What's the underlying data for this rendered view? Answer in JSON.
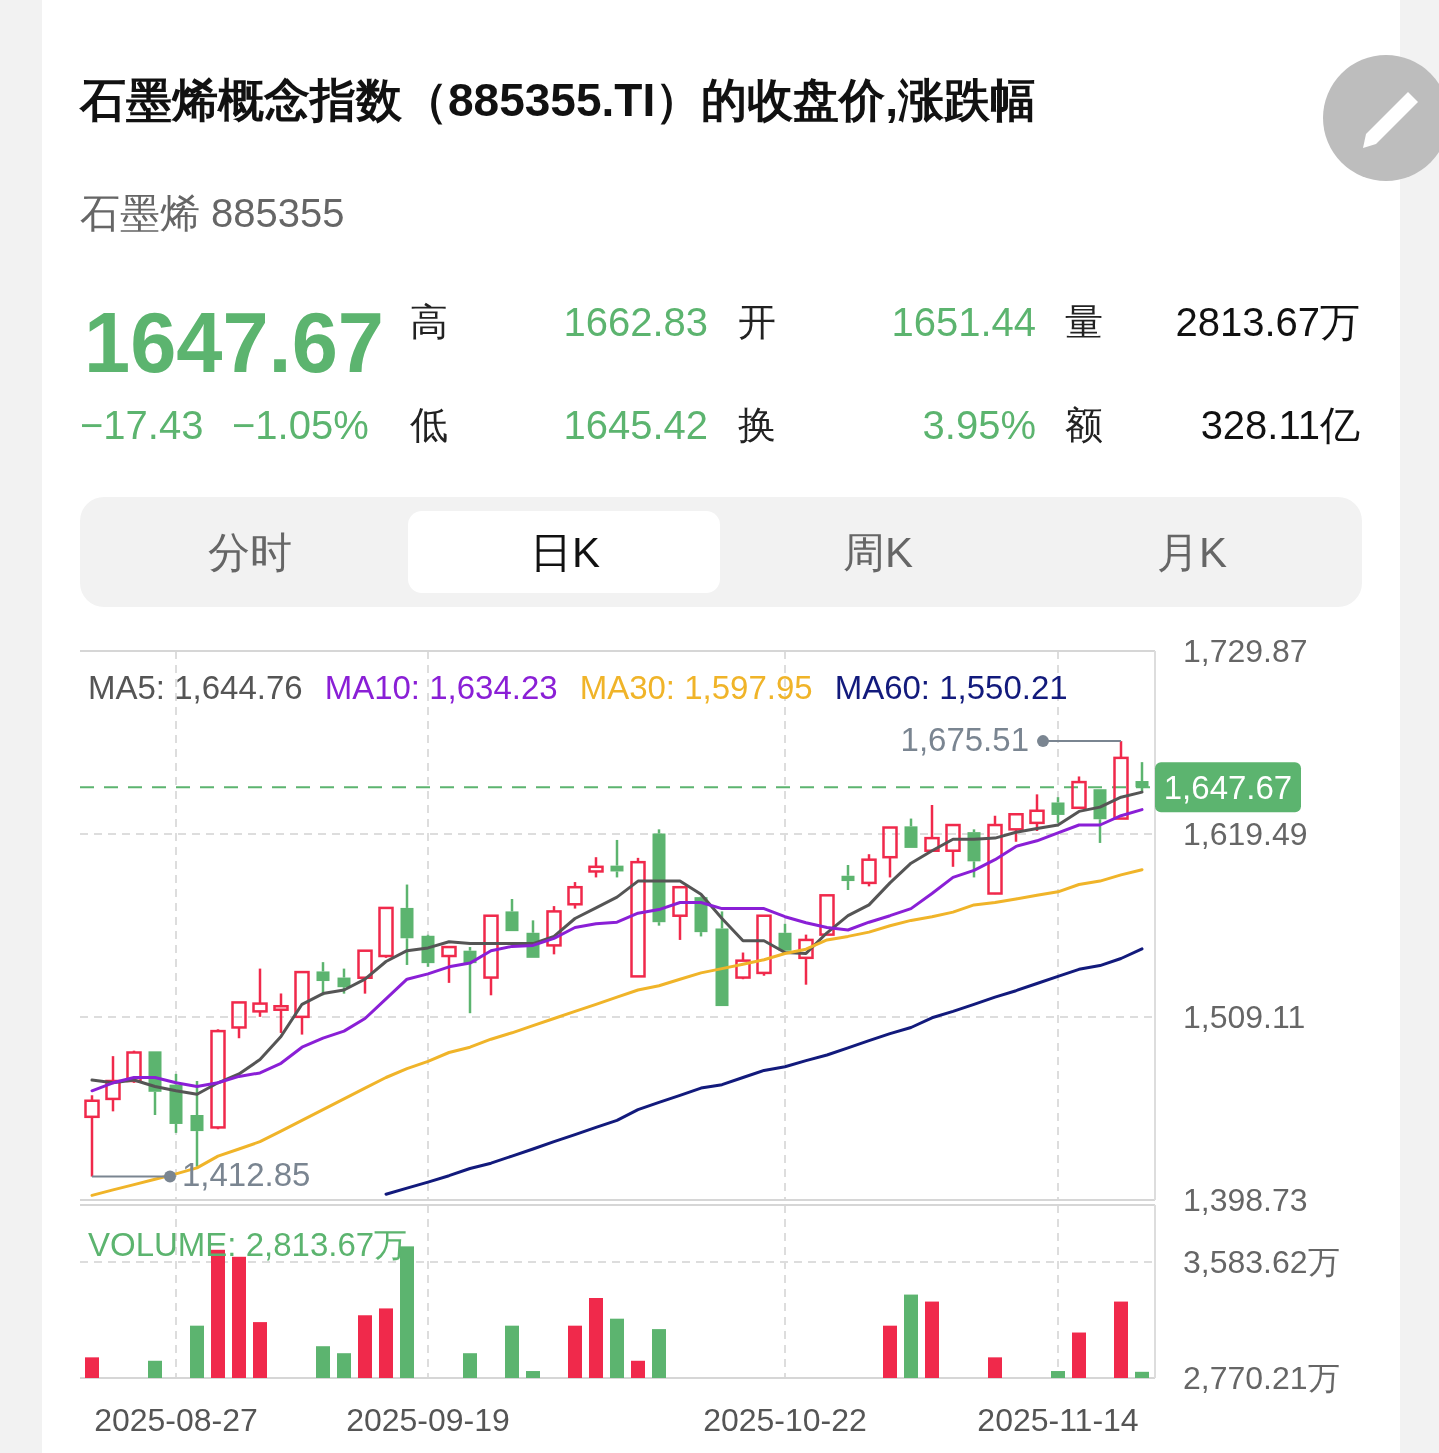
{
  "chart_data": [
    {
      "type": "other",
      "title": "石墨烯概念指数（885355.TI）的收盘价,涨跌幅",
      "subtitle": "石墨烯 885355",
      "annotations": [
        "1647.67",
        "−17.43",
        "−1.05%",
        "高",
        "1662.83",
        "开",
        "1651.44",
        "量",
        "2813.67万",
        "低",
        "1645.42",
        "换",
        "3.95%",
        "额",
        "328.11亿",
        "分时",
        "日K",
        "周K",
        "月K"
      ]
    },
    {
      "type": "candlestick",
      "tick_labels": "y",
      "grid": true,
      "legend": "top",
      "categories": [
        null,
        null,
        null,
        null,
        "2025-08-27",
        null,
        null,
        null,
        null,
        null,
        null,
        null,
        null,
        null,
        null,
        null,
        "2025-09-19",
        null,
        null,
        null,
        null,
        null,
        null,
        null,
        null,
        null,
        null,
        null,
        null,
        null,
        null,
        null,
        null,
        "2025-10-22",
        null,
        null,
        null,
        null,
        null,
        null,
        null,
        null,
        null,
        null,
        null,
        null,
        "2025-11-14",
        null,
        null,
        null,
        null
      ],
      "ylim": [
        1398.73,
        1729.87
      ],
      "yticks": [
        {
          "value": 1729.87,
          "label": "1,729.87"
        },
        {
          "value": 1619.49,
          "label": "1,619.49"
        },
        {
          "value": 1509.11,
          "label": "1,509.11"
        },
        {
          "value": 1398.73,
          "label": "1,398.73"
        }
      ],
      "ohlc": [
        [
          1448.9,
          1461.9,
          1412.85,
          1458.6
        ],
        [
          1459.7,
          1485.5,
          1452.2,
          1470.5
        ],
        [
          1470.5,
          1488.8,
          1469.4,
          1487.7
        ],
        [
          1488.4,
          1488.4,
          1450.0,
          1464.0
        ],
        [
          1468.3,
          1474.8,
          1439.2,
          1444.6
        ],
        [
          1450.0,
          1470.5,
          1418.8,
          1440.3
        ],
        [
          1442.5,
          1501.7,
          1441.4,
          1500.6
        ],
        [
          1502.8,
          1517.9,
          1496.3,
          1517.9
        ],
        [
          1512.5,
          1538.3,
          1509.2,
          1517.2
        ],
        [
          1513.5,
          1523.3,
          1499.5,
          1515.6
        ],
        [
          1509.2,
          1536.2,
          1498.5,
          1536.2
        ],
        [
          1536.6,
          1542.2,
          1522.2,
          1530.8
        ],
        [
          1532.9,
          1538.3,
          1523.2,
          1527.1
        ],
        [
          1532.8,
          1549.1,
          1523.2,
          1549.1
        ],
        [
          1545.9,
          1574.9,
          1544.8,
          1574.9
        ],
        [
          1574.9,
          1589.0,
          1540.5,
          1556.6
        ],
        [
          1558.1,
          1558.7,
          1539.4,
          1541.6
        ],
        [
          1545.9,
          1551.3,
          1529.7,
          1551.3
        ],
        [
          1549.1,
          1551.3,
          1511.4,
          1541.6
        ],
        [
          1532.9,
          1570.2,
          1522.2,
          1570.2
        ],
        [
          1572.8,
          1580.3,
          1560.9,
          1560.9
        ],
        [
          1559.9,
          1567.4,
          1544.8,
          1544.8
        ],
        [
          1552.3,
          1576.0,
          1546.9,
          1572.8
        ],
        [
          1577.1,
          1590.5,
          1574.5,
          1587.4
        ],
        [
          1596.9,
          1605.5,
          1593.3,
          1599.7
        ],
        [
          1600.4,
          1615.9,
          1593.3,
          1596.9
        ],
        [
          1533.6,
          1605.1,
          1533.6,
          1602.5
        ],
        [
          1619.8,
          1622.3,
          1564.2,
          1566.3
        ],
        [
          1570.2,
          1587.4,
          1555.6,
          1587.4
        ],
        [
          1581.4,
          1581.8,
          1557.7,
          1560.3
        ],
        [
          1562.5,
          1572.8,
          1515.7,
          1515.7
        ],
        [
          1532.9,
          1548.0,
          1531.9,
          1543.1
        ],
        [
          1535.7,
          1570.2,
          1534.0,
          1570.2
        ],
        [
          1559.9,
          1565.3,
          1549.1,
          1549.1
        ],
        [
          1544.8,
          1558.8,
          1528.6,
          1555.6
        ],
        [
          1558.8,
          1582.5,
          1558.8,
          1582.5
        ],
        [
          1594.3,
          1600.8,
          1585.7,
          1591.1
        ],
        [
          1590.0,
          1607.3,
          1587.9,
          1604.0
        ],
        [
          1605.5,
          1623.4,
          1593.3,
          1623.4
        ],
        [
          1624.1,
          1628.8,
          1611.1,
          1611.1
        ],
        [
          1609.4,
          1637.0,
          1609.4,
          1617.0
        ],
        [
          1609.4,
          1624.9,
          1599.7,
          1624.9
        ],
        [
          1620.6,
          1622.3,
          1593.3,
          1603.0
        ],
        [
          1583.6,
          1630.5,
          1583.2,
          1624.9
        ],
        [
          1622.3,
          1631.4,
          1614.8,
          1631.4
        ],
        [
          1626.2,
          1643.4,
          1621.3,
          1633.5
        ],
        [
          1638.5,
          1641.7,
          1626.2,
          1631.0
        ],
        [
          1635.3,
          1654.2,
          1635.3,
          1650.8
        ],
        [
          1646.5,
          1646.5,
          1614.1,
          1628.4
        ],
        [
          1628.8,
          1675.51,
          1628.8,
          1665.4
        ],
        [
          1651.44,
          1662.83,
          1645.42,
          1647.67
        ]
      ],
      "colors": [
        "#f0294b",
        "#f0294b",
        "#f0294b",
        "#5cb46f",
        "#5cb46f",
        "#5cb46f",
        "#f0294b",
        "#f0294b",
        "#f0294b",
        "#f0294b",
        "#f0294b",
        "#5cb46f",
        "#5cb46f",
        "#f0294b",
        "#f0294b",
        "#5cb46f",
        "#5cb46f",
        "#f0294b",
        "#5cb46f",
        "#f0294b",
        "#5cb46f",
        "#5cb46f",
        "#f0294b",
        "#f0294b",
        "#f0294b",
        "#5cb46f",
        "#f0294b",
        "#5cb46f",
        "#f0294b",
        "#5cb46f",
        "#5cb46f",
        "#f0294b",
        "#f0294b",
        "#5cb46f",
        "#f0294b",
        "#f0294b",
        "#5cb46f",
        "#f0294b",
        "#f0294b",
        "#5cb46f",
        "#f0294b",
        "#f0294b",
        "#5cb46f",
        "#f0294b",
        "#f0294b",
        "#f0294b",
        "#5cb46f",
        "#f0294b",
        "#5cb46f",
        "#f0294b",
        "#5cb46f"
      ],
      "series": [
        {
          "name": "MA5: 1,644.76",
          "type": "line",
          "color": "#555555",
          "values": [
            1471.1,
            1469.4,
            1471.1,
            1467.2,
            1464.6,
            1462.5,
            1469.4,
            1474.8,
            1483.4,
            1497.4,
            1516.8,
            1523.2,
            1525.4,
            1531.9,
            1542.6,
            1549.1,
            1550.8,
            1554.5,
            1553.4,
            1553.4,
            1553.4,
            1553.4,
            1557.7,
            1568.5,
            1574.9,
            1581.4,
            1591.1,
            1591.1,
            1591.1,
            1583.1,
            1568.5,
            1555.1,
            1555.1,
            1548.0,
            1547.5,
            1559.9,
            1570.2,
            1576.7,
            1590.0,
            1601.9,
            1609.4,
            1616.3,
            1616.3,
            1617.0,
            1620.6,
            1622.8,
            1624.9,
            1633.1,
            1635.7,
            1641.7,
            1644.76
          ]
        },
        {
          "name": "MA10: 1,634.23",
          "type": "line",
          "color": "#8a1fd6",
          "values": [
            1464.6,
            1469.4,
            1472.6,
            1472.6,
            1469.4,
            1467.2,
            1469.4,
            1473.3,
            1475.4,
            1481.2,
            1490.9,
            1496.3,
            1500.6,
            1508.2,
            1520.0,
            1531.9,
            1535.1,
            1539.4,
            1541.6,
            1549.1,
            1551.7,
            1552.3,
            1556.6,
            1563.1,
            1565.3,
            1566.3,
            1571.7,
            1573.9,
            1578.2,
            1578.2,
            1574.5,
            1574.5,
            1574.5,
            1569.6,
            1566.0,
            1563.1,
            1561.6,
            1566.3,
            1570.2,
            1574.5,
            1583.6,
            1593.3,
            1597.6,
            1604.0,
            1612.0,
            1615.4,
            1620.2,
            1624.9,
            1624.9,
            1630.5,
            1634.23
          ]
        },
        {
          "name": "MA30: 1,597.95",
          "type": "line",
          "color": "#f0b429",
          "values": [
            1401.5,
            1404.8,
            1408.0,
            1411.2,
            1414.5,
            1418.1,
            1425.2,
            1429.5,
            1433.9,
            1440.3,
            1446.8,
            1453.2,
            1459.7,
            1466.2,
            1472.6,
            1478.0,
            1482.3,
            1487.7,
            1490.9,
            1495.7,
            1499.6,
            1503.9,
            1508.2,
            1512.5,
            1516.8,
            1521.1,
            1525.4,
            1528.0,
            1531.9,
            1535.7,
            1538.3,
            1540.9,
            1543.7,
            1547.4,
            1550.0,
            1555.6,
            1557.7,
            1560.3,
            1564.2,
            1567.4,
            1569.6,
            1572.4,
            1576.7,
            1578.2,
            1580.3,
            1582.5,
            1584.6,
            1589.0,
            1591.1,
            1594.8,
            1597.95
          ]
        },
        {
          "name": "MA60: 1,550.21",
          "type": "line",
          "color": "#121a7c",
          "values": [
            null,
            null,
            null,
            null,
            null,
            null,
            null,
            null,
            null,
            null,
            null,
            null,
            null,
            null,
            1402.2,
            1405.9,
            1409.5,
            1413.4,
            1417.7,
            1420.9,
            1425.2,
            1429.5,
            1433.9,
            1438.2,
            1442.5,
            1446.8,
            1453.2,
            1457.6,
            1461.9,
            1466.2,
            1468.3,
            1472.6,
            1476.9,
            1479.1,
            1482.8,
            1486.2,
            1490.5,
            1494.8,
            1499.1,
            1502.8,
            1508.6,
            1512.5,
            1516.8,
            1521.1,
            1525.0,
            1529.3,
            1533.6,
            1537.9,
            1540.1,
            1544.4,
            1550.21
          ]
        }
      ],
      "annotations": [
        "1,675.51",
        "1,412.85"
      ],
      "ref_lines": [
        {
          "axis": "y",
          "value": 1647.67,
          "label": "1,647.67",
          "color": "#5cb46f",
          "line_style": "dashed"
        }
      ]
    },
    {
      "type": "bar",
      "grid": true,
      "legend": "top",
      "categories": [
        null,
        null,
        null,
        null,
        "2025-08-27",
        null,
        null,
        null,
        null,
        null,
        null,
        null,
        null,
        null,
        null,
        null,
        "2025-09-19",
        null,
        null,
        null,
        null,
        null,
        null,
        null,
        null,
        null,
        null,
        null,
        null,
        null,
        null,
        null,
        null,
        "2025-10-22",
        null,
        null,
        null,
        null,
        null,
        null,
        null,
        null,
        null,
        null,
        null,
        null,
        "2025-11-14",
        null,
        null,
        null,
        null
      ],
      "ylim": [
        2770.21,
        3983
      ],
      "yticks": [
        {
          "value": 3583.62,
          "label": "3,583.62万"
        },
        {
          "value": 2770.21,
          "label": "2,770.21万"
        }
      ],
      "series": [
        {
          "name": "VOLUME: 2,813.67万",
          "color": "#5cb46f",
          "values": [
            2915,
            null,
            null,
            2891,
            null,
            3137,
            3669,
            3620,
            3162,
            null,
            null,
            2993,
            2944,
            3210,
            3258,
            3693,
            null,
            null,
            2944,
            null,
            3137,
            2819,
            null,
            3137,
            3331,
            3186,
            2891,
            3113,
            null,
            null,
            null,
            null,
            null,
            null,
            null,
            null,
            null,
            null,
            3137,
            3355,
            3306,
            null,
            null,
            2915,
            null,
            null,
            2819,
            3089,
            null,
            3306,
            2813.67
          ],
          "colors": [
            "#f0294b",
            null,
            null,
            "#5cb46f",
            null,
            "#5cb46f",
            "#f0294b",
            "#f0294b",
            "#f0294b",
            null,
            null,
            "#5cb46f",
            "#5cb46f",
            "#f0294b",
            "#f0294b",
            "#5cb46f",
            null,
            null,
            "#5cb46f",
            null,
            "#5cb46f",
            "#5cb46f",
            null,
            "#f0294b",
            "#f0294b",
            "#5cb46f",
            "#f0294b",
            "#5cb46f",
            null,
            null,
            null,
            null,
            null,
            null,
            null,
            null,
            null,
            null,
            "#f0294b",
            "#5cb46f",
            "#f0294b",
            null,
            null,
            "#f0294b",
            null,
            null,
            "#5cb46f",
            "#f0294b",
            null,
            "#f0294b",
            "#5cb46f"
          ]
        }
      ]
    }
  ]
}
